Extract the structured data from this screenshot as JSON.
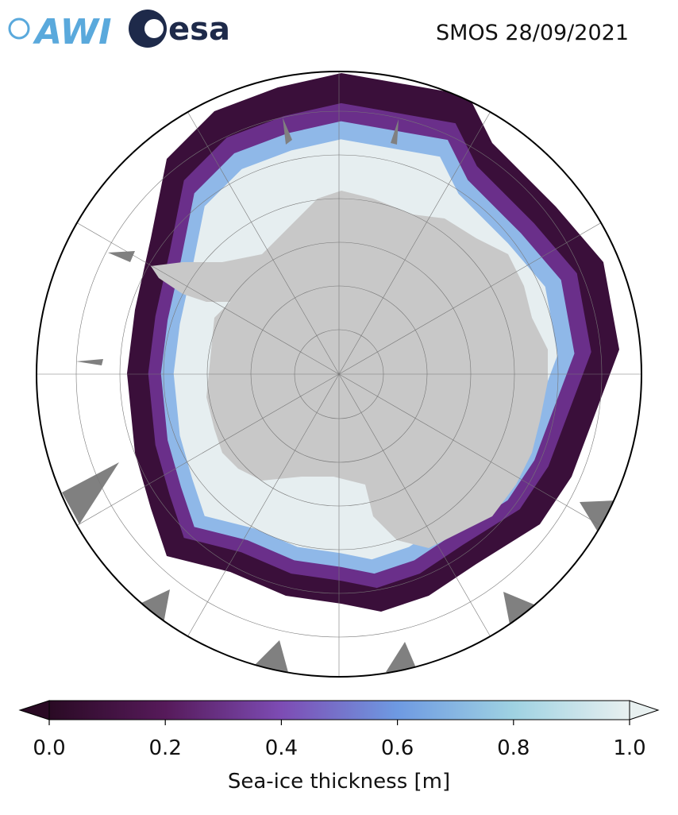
{
  "title": "SMOS 28/09/2021",
  "logos": [
    "AWI",
    "esa"
  ],
  "colorbar": {
    "label": "Sea-ice thickness [m]",
    "lim": [
      0,
      1
    ],
    "ticks": [
      {
        "value": 0,
        "label": "0.0"
      },
      {
        "value": 0.2,
        "label": "0.2"
      },
      {
        "value": 0.4,
        "label": "0.4"
      },
      {
        "value": 0.6,
        "label": "0.6"
      },
      {
        "value": 0.8,
        "label": "0.8"
      },
      {
        "value": 1,
        "label": "1.0"
      }
    ],
    "colormap": [
      "#2a0a24",
      "#561a5a",
      "#7d4cb4",
      "#6e9ae2",
      "#9fd2e2",
      "#e8f0f0"
    ]
  }
}
